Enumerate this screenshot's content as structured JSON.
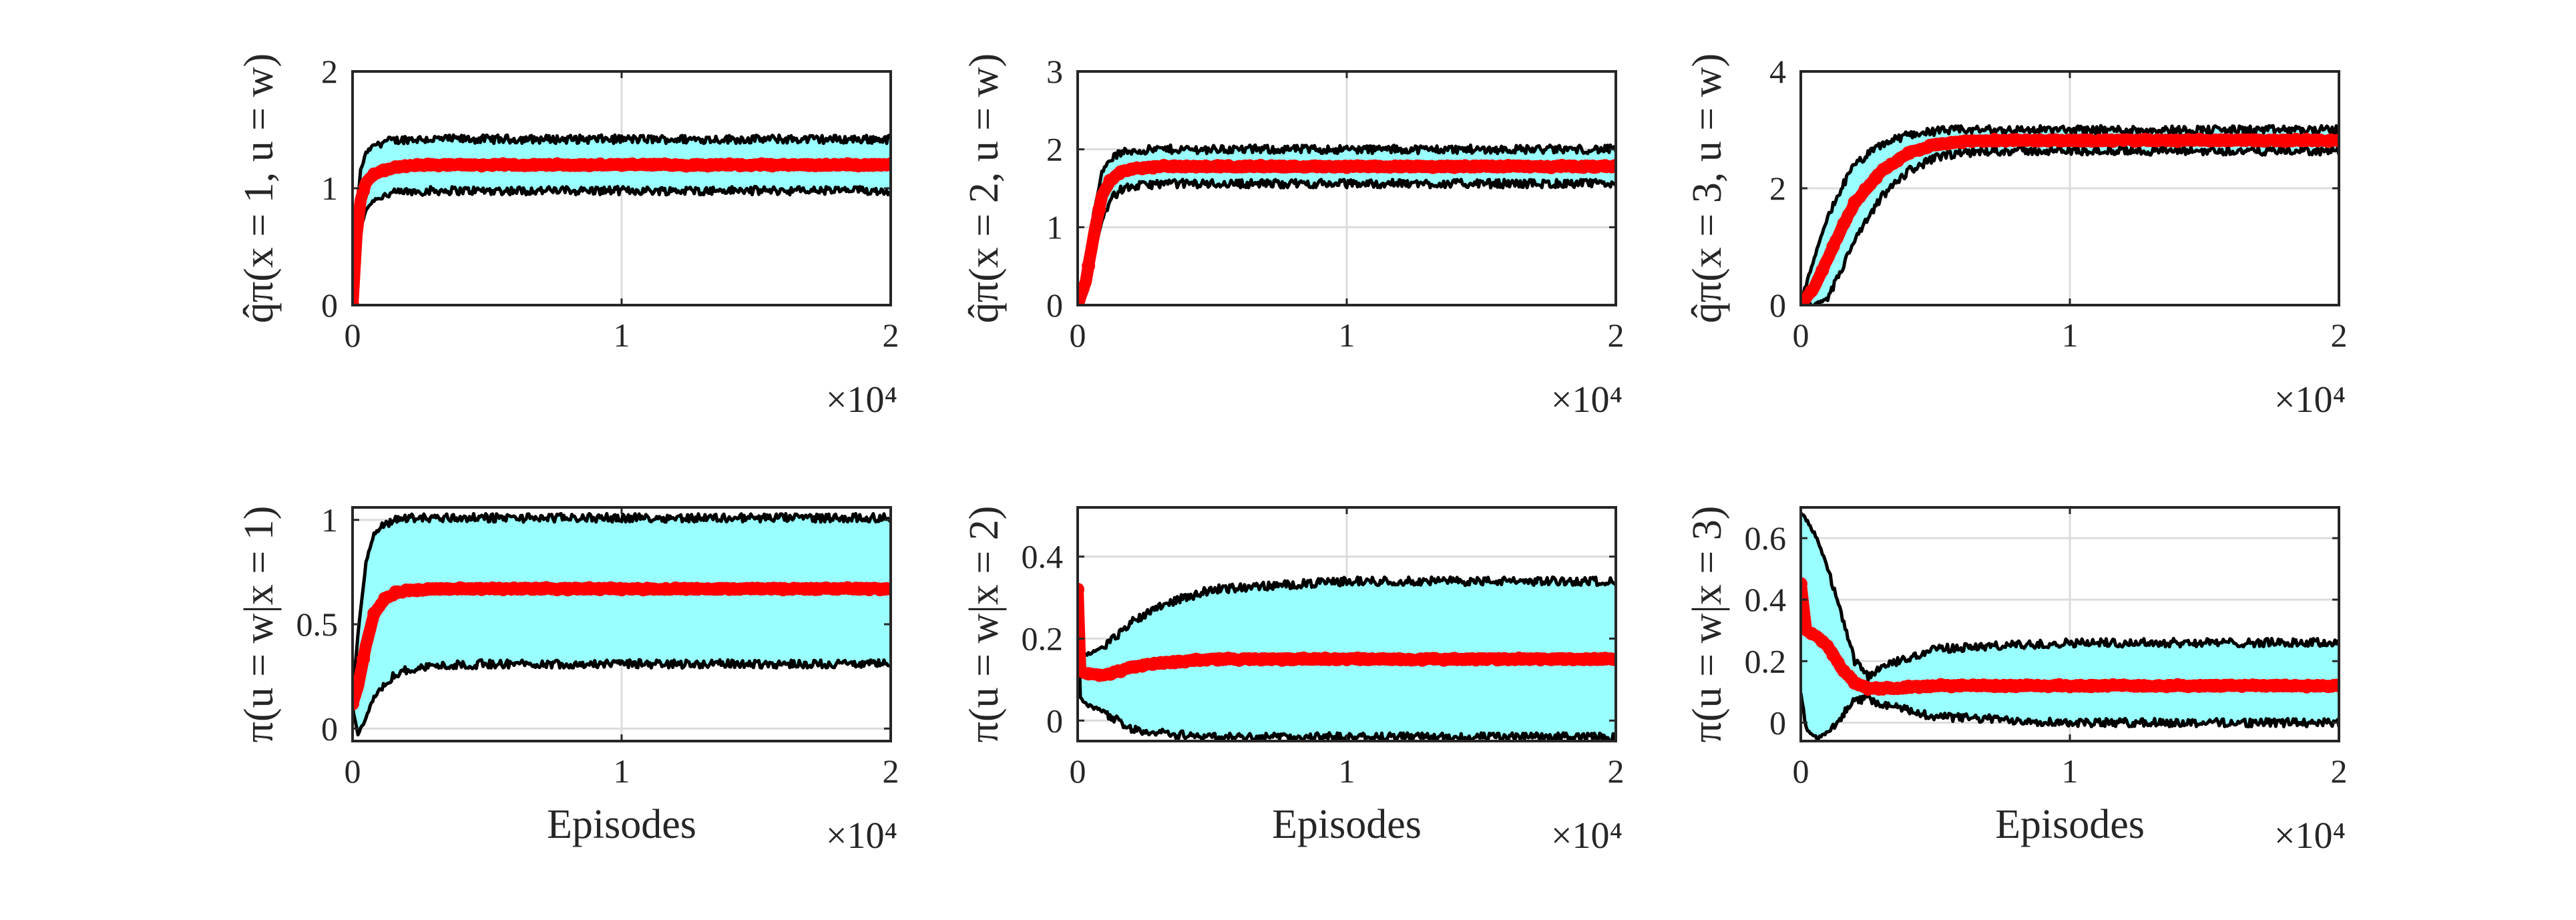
{
  "chart_data": [
    {
      "type": "area",
      "ylabel": "q̂π(x = 1, u = w)",
      "xlim": [
        0,
        20000
      ],
      "ylim": [
        0,
        2
      ],
      "xticks": [
        0,
        10000,
        20000
      ],
      "xtick_labels": [
        "0",
        "1",
        "2"
      ],
      "yticks": [
        0,
        1,
        2
      ],
      "ytick_labels": [
        "0",
        "1",
        "2"
      ],
      "x_multiplier": "×10⁴",
      "grid": true,
      "series": [
        {
          "role": "mean",
          "x": [
            0,
            150,
            300,
            500,
            800,
            1200,
            1600,
            2000,
            3000,
            5000,
            10000,
            15000,
            20000
          ],
          "values": [
            0,
            0.6,
            0.9,
            1.05,
            1.12,
            1.16,
            1.18,
            1.19,
            1.2,
            1.2,
            1.2,
            1.2,
            1.2
          ]
        },
        {
          "role": "upper",
          "x": [
            0,
            150,
            300,
            500,
            800,
            1200,
            1600,
            2000,
            3000,
            5000,
            10000,
            15000,
            20000
          ],
          "values": [
            0,
            0.8,
            1.15,
            1.3,
            1.37,
            1.4,
            1.41,
            1.42,
            1.42,
            1.42,
            1.42,
            1.42,
            1.42
          ]
        },
        {
          "role": "lower",
          "x": [
            0,
            150,
            300,
            500,
            800,
            1200,
            1600,
            2000,
            3000,
            5000,
            10000,
            15000,
            20000
          ],
          "values": [
            0,
            0.4,
            0.65,
            0.82,
            0.9,
            0.94,
            0.96,
            0.97,
            0.98,
            0.98,
            0.98,
            0.98,
            0.98
          ]
        }
      ],
      "colors": {
        "mean": "#ff0000",
        "band": "#99ffff",
        "bound": "#000000"
      }
    },
    {
      "type": "area",
      "ylabel": "q̂π(x = 2, u = w)",
      "xlim": [
        0,
        20000
      ],
      "ylim": [
        0,
        3
      ],
      "xticks": [
        0,
        10000,
        20000
      ],
      "xtick_labels": [
        "0",
        "1",
        "2"
      ],
      "yticks": [
        0,
        1,
        2,
        3
      ],
      "ytick_labels": [
        "0",
        "1",
        "2",
        "3"
      ],
      "x_multiplier": "×10⁴",
      "grid": true,
      "series": [
        {
          "role": "mean",
          "x": [
            0,
            300,
            600,
            900,
            1200,
            1600,
            2000,
            3000,
            5000,
            10000,
            15000,
            20000
          ],
          "values": [
            0,
            0.3,
            0.9,
            1.4,
            1.6,
            1.7,
            1.75,
            1.78,
            1.78,
            1.78,
            1.78,
            1.78
          ]
        },
        {
          "role": "upper",
          "x": [
            0,
            300,
            600,
            900,
            1200,
            1600,
            2000,
            3000,
            5000,
            10000,
            15000,
            20000
          ],
          "values": [
            0,
            0.5,
            1.2,
            1.7,
            1.88,
            1.95,
            1.98,
            2.0,
            2.0,
            2.0,
            2.0,
            2.0
          ]
        },
        {
          "role": "lower",
          "x": [
            0,
            300,
            600,
            900,
            1200,
            1600,
            2000,
            3000,
            5000,
            10000,
            15000,
            20000
          ],
          "values": [
            0,
            0.15,
            0.6,
            1.1,
            1.35,
            1.48,
            1.52,
            1.56,
            1.56,
            1.56,
            1.56,
            1.56
          ]
        }
      ],
      "colors": {
        "mean": "#ff0000",
        "band": "#99ffff",
        "bound": "#000000"
      }
    },
    {
      "type": "area",
      "ylabel": "q̂π(x = 3, u = w)",
      "xlim": [
        0,
        20000
      ],
      "ylim": [
        0,
        4
      ],
      "xticks": [
        0,
        10000,
        20000
      ],
      "xtick_labels": [
        "0",
        "1",
        "2"
      ],
      "yticks": [
        0,
        2,
        4
      ],
      "ytick_labels": [
        "0",
        "2",
        "4"
      ],
      "x_multiplier": "×10⁴",
      "grid": true,
      "series": [
        {
          "role": "mean",
          "x": [
            0,
            500,
            1000,
            1500,
            2000,
            3000,
            4000,
            5000,
            6000,
            7000,
            8000,
            10000,
            15000,
            20000
          ],
          "values": [
            0,
            0.3,
            0.8,
            1.3,
            1.75,
            2.3,
            2.6,
            2.75,
            2.8,
            2.82,
            2.82,
            2.82,
            2.82,
            2.82
          ]
        },
        {
          "role": "upper",
          "x": [
            0,
            500,
            1000,
            1500,
            2000,
            3000,
            4000,
            5000,
            6000,
            7000,
            8000,
            10000,
            15000,
            20000
          ],
          "values": [
            0.05,
            0.8,
            1.5,
            2.0,
            2.4,
            2.75,
            2.92,
            2.98,
            3.0,
            3.0,
            3.0,
            3.0,
            3.0,
            3.0
          ]
        },
        {
          "role": "lower",
          "x": [
            0,
            500,
            1000,
            1500,
            2000,
            3000,
            4000,
            5000,
            6000,
            7000,
            8000,
            10000,
            15000,
            20000
          ],
          "values": [
            0,
            0,
            0.1,
            0.6,
            1.1,
            1.85,
            2.3,
            2.52,
            2.6,
            2.64,
            2.64,
            2.64,
            2.64,
            2.64
          ]
        }
      ],
      "colors": {
        "mean": "#ff0000",
        "band": "#99ffff",
        "bound": "#000000"
      }
    },
    {
      "type": "area",
      "ylabel": "π(u = w|x = 1)",
      "xlabel": "Episodes",
      "xlim": [
        0,
        20000
      ],
      "ylim": [
        -0.06,
        1.06
      ],
      "xticks": [
        0,
        10000,
        20000
      ],
      "xtick_labels": [
        "0",
        "1",
        "2"
      ],
      "yticks": [
        0,
        0.5,
        1
      ],
      "ytick_labels": [
        "0",
        "0.5",
        "1"
      ],
      "x_multiplier": "×10⁴",
      "grid": true,
      "series": [
        {
          "role": "mean",
          "x": [
            0,
            200,
            500,
            800,
            1200,
            1600,
            2000,
            3000,
            5000,
            10000,
            15000,
            20000
          ],
          "values": [
            0.12,
            0.2,
            0.4,
            0.55,
            0.62,
            0.65,
            0.66,
            0.67,
            0.67,
            0.67,
            0.67,
            0.67
          ]
        },
        {
          "role": "upper",
          "x": [
            0,
            200,
            500,
            800,
            1200,
            1600,
            2000,
            3000,
            5000,
            10000,
            15000,
            20000
          ],
          "values": [
            0.14,
            0.45,
            0.8,
            0.93,
            0.98,
            1.0,
            1.01,
            1.01,
            1.01,
            1.01,
            1.01,
            1.01
          ]
        },
        {
          "role": "lower",
          "x": [
            0,
            200,
            500,
            800,
            1200,
            1600,
            2000,
            3000,
            5000,
            10000,
            15000,
            20000
          ],
          "values": [
            0.1,
            -0.03,
            0.05,
            0.15,
            0.22,
            0.26,
            0.28,
            0.3,
            0.31,
            0.31,
            0.31,
            0.31
          ]
        }
      ],
      "colors": {
        "mean": "#ff0000",
        "band": "#99ffff",
        "bound": "#000000"
      }
    },
    {
      "type": "area",
      "ylabel": "π(u = w|x = 2)",
      "xlabel": "Episodes",
      "xlim": [
        0,
        20000
      ],
      "ylim": [
        -0.05,
        0.52
      ],
      "xticks": [
        0,
        10000,
        20000
      ],
      "xtick_labels": [
        "0",
        "1",
        "2"
      ],
      "yticks": [
        0,
        0.2,
        0.4
      ],
      "ytick_labels": [
        "0",
        "0.2",
        "0.4"
      ],
      "x_multiplier": "×10⁴",
      "grid": true,
      "series": [
        {
          "role": "mean",
          "x": [
            0,
            100,
            300,
            1000,
            2000,
            3000,
            5000,
            10000,
            15000,
            20000
          ],
          "values": [
            0.32,
            0.12,
            0.115,
            0.11,
            0.13,
            0.14,
            0.15,
            0.15,
            0.15,
            0.15
          ]
        },
        {
          "role": "upper",
          "x": [
            0,
            100,
            300,
            1000,
            2000,
            3000,
            5000,
            10000,
            15000,
            20000
          ],
          "values": [
            0.33,
            0.16,
            0.16,
            0.18,
            0.24,
            0.28,
            0.32,
            0.34,
            0.34,
            0.34
          ]
        },
        {
          "role": "lower",
          "x": [
            0,
            100,
            300,
            1000,
            2000,
            3000,
            5000,
            10000,
            15000,
            20000
          ],
          "values": [
            0.3,
            0.06,
            0.04,
            0.02,
            -0.02,
            -0.03,
            -0.04,
            -0.04,
            -0.04,
            -0.04
          ]
        }
      ],
      "colors": {
        "mean": "#ff0000",
        "band": "#99ffff",
        "bound": "#000000"
      }
    },
    {
      "type": "area",
      "ylabel": "π(u = w|x = 3)",
      "xlabel": "Episodes",
      "xlim": [
        0,
        20000
      ],
      "ylim": [
        -0.06,
        0.7
      ],
      "xticks": [
        0,
        10000,
        20000
      ],
      "xtick_labels": [
        "0",
        "1",
        "2"
      ],
      "yticks": [
        0,
        0.2,
        0.4,
        0.6
      ],
      "ytick_labels": [
        "0",
        "0.2",
        "0.4",
        "0.6"
      ],
      "x_multiplier": "×10⁴",
      "grid": true,
      "series": [
        {
          "role": "mean",
          "x": [
            0,
            200,
            600,
            1000,
            1500,
            2000,
            2500,
            3000,
            5000,
            10000,
            15000,
            20000
          ],
          "values": [
            0.45,
            0.3,
            0.28,
            0.25,
            0.18,
            0.13,
            0.11,
            0.11,
            0.12,
            0.12,
            0.12,
            0.12
          ]
        },
        {
          "role": "upper",
          "x": [
            0,
            200,
            600,
            1000,
            1500,
            2000,
            2500,
            3000,
            5000,
            10000,
            15000,
            20000
          ],
          "values": [
            0.68,
            0.66,
            0.6,
            0.5,
            0.35,
            0.2,
            0.15,
            0.18,
            0.24,
            0.26,
            0.26,
            0.26
          ]
        },
        {
          "role": "lower",
          "x": [
            0,
            200,
            600,
            1000,
            1500,
            2000,
            2500,
            3000,
            5000,
            10000,
            15000,
            20000
          ],
          "values": [
            0.1,
            -0.02,
            -0.05,
            -0.03,
            0.02,
            0.07,
            0.08,
            0.06,
            0.02,
            0.0,
            0.0,
            0.0
          ]
        }
      ],
      "colors": {
        "mean": "#ff0000",
        "band": "#99ffff",
        "bound": "#000000"
      }
    }
  ]
}
